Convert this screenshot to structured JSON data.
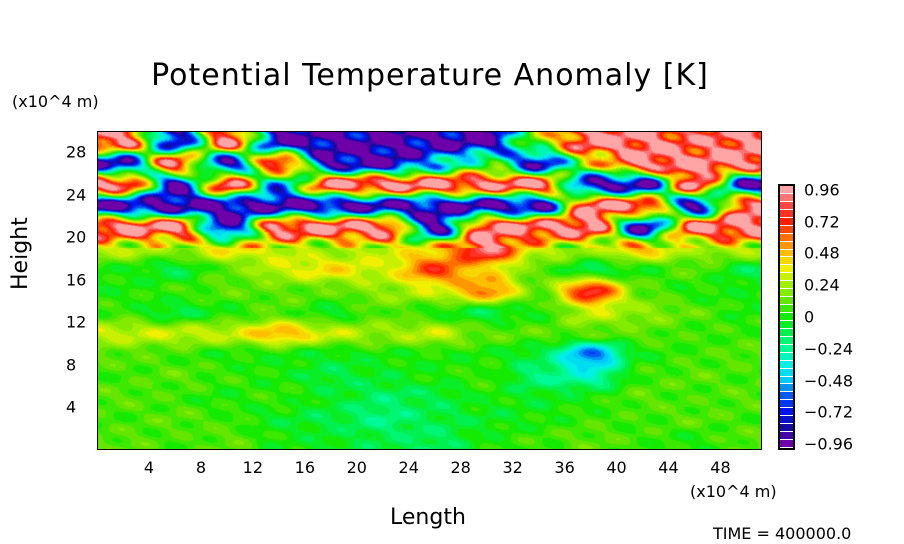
{
  "chart_data": {
    "type": "heatmap",
    "title": "Potential Temperature Anomaly [K]",
    "xlabel": "Length",
    "ylabel": "Height",
    "x_unit": "(x10^4 m)",
    "y_unit": "(x10^4 m)",
    "xlim": [
      0,
      51.2
    ],
    "ylim": [
      0,
      30
    ],
    "x_ticks": [
      "4",
      "8",
      "12",
      "16",
      "20",
      "24",
      "28",
      "32",
      "36",
      "40",
      "44",
      "48"
    ],
    "y_ticks": [
      "4",
      "8",
      "12",
      "16",
      "20",
      "24",
      "28"
    ],
    "x_centers": [
      2,
      6,
      10,
      14,
      18,
      22,
      26,
      30,
      34,
      38,
      42,
      46,
      50
    ],
    "y_centers": [
      29,
      27,
      25,
      23,
      21,
      19,
      17,
      15,
      13,
      11,
      9,
      7,
      5,
      3,
      1
    ],
    "values": [
      [
        0.9,
        -0.9,
        0.9,
        -0.9,
        -0.95,
        -0.95,
        -0.95,
        -0.95,
        0.2,
        0.96,
        0.96,
        0.8,
        0.96
      ],
      [
        -0.9,
        0.96,
        -0.9,
        0.96,
        -0.9,
        -0.95,
        -0.5,
        0,
        -0.9,
        0.3,
        0.96,
        0.96,
        0.96
      ],
      [
        0.96,
        -0.9,
        0.96,
        -0.5,
        0.96,
        0.96,
        0.96,
        0.9,
        0.96,
        -0.9,
        -0.95,
        0.96,
        -0.9
      ],
      [
        -0.95,
        -0.95,
        -0.95,
        -0.95,
        -0.95,
        -0.9,
        -0.9,
        -0.95,
        -0.95,
        0.96,
        0.96,
        -0.95,
        0.96
      ],
      [
        0.96,
        0.96,
        -0.95,
        0.96,
        0.96,
        0.96,
        -0.95,
        0.96,
        0.96,
        0.96,
        -0.95,
        0.96,
        0.96
      ],
      [
        0.3,
        0.2,
        0.4,
        0.3,
        0.2,
        0.3,
        0.4,
        0.96,
        0.3,
        0.2,
        0.5,
        0.2,
        0.3
      ],
      [
        0,
        -0.1,
        0.1,
        0.3,
        0.4,
        0.3,
        0.7,
        0.4,
        0.1,
        -0.1,
        0,
        0.1,
        -0.1
      ],
      [
        0,
        0.05,
        0.1,
        0.1,
        0.1,
        0.2,
        0.3,
        0.6,
        0.1,
        0.8,
        0.1,
        0,
        0
      ],
      [
        0.05,
        -0.1,
        0,
        0.1,
        -0.05,
        0.1,
        0,
        -0.1,
        0,
        0.3,
        0.2,
        0.1,
        0
      ],
      [
        0.3,
        0.3,
        0.3,
        0.5,
        0.3,
        0.2,
        0.3,
        0.1,
        0.1,
        0.1,
        0.1,
        0.05,
        0.05
      ],
      [
        0.1,
        0.05,
        0,
        0,
        -0.05,
        0,
        0,
        0,
        -0.1,
        -0.6,
        0,
        0.05,
        0.1
      ],
      [
        0.05,
        0.1,
        0.05,
        0,
        -0.1,
        -0.05,
        0,
        0.05,
        -0.2,
        -0.3,
        0.05,
        0.1,
        0.05
      ],
      [
        0.1,
        0.05,
        0,
        0.05,
        -0.05,
        -0.15,
        -0.1,
        0,
        -0.05,
        0,
        0.1,
        0.05,
        0.1
      ],
      [
        0.05,
        0.1,
        0.05,
        -0.05,
        -0.1,
        -0.2,
        -0.1,
        -0.05,
        0,
        0.05,
        0.05,
        0.1,
        0.05
      ],
      [
        0.1,
        0.05,
        0.1,
        0,
        -0.05,
        -0.1,
        -0.15,
        0,
        0.05,
        0.1,
        0.05,
        0,
        0.1
      ]
    ],
    "colorbar": {
      "min": -0.96,
      "max": 0.96,
      "step": 0.06,
      "labels": [
        "0.96",
        "0.72",
        "0.48",
        "0.24",
        "0",
        "−0.24",
        "−0.48",
        "−0.72",
        "−0.96"
      ],
      "label_values": [
        0.96,
        0.72,
        0.48,
        0.24,
        0,
        -0.24,
        -0.48,
        -0.72,
        -0.96
      ]
    },
    "time_label": "TIME  =  400000.0"
  }
}
